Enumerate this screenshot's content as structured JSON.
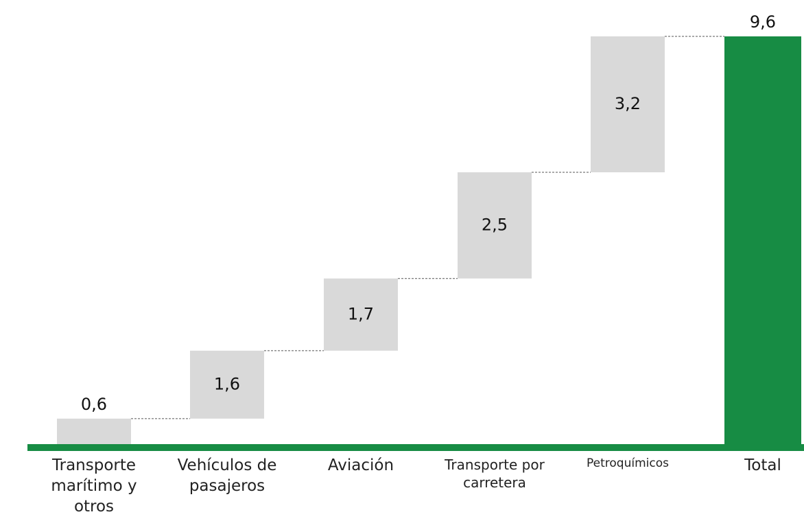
{
  "chart_data": {
    "type": "waterfall",
    "categories": [
      "Transporte marítimo y otros",
      "Vehículos de pasajeros",
      "Aviación",
      "Transporte por carretera",
      "Petroquímicos",
      "Total"
    ],
    "values": [
      0.6,
      1.6,
      1.7,
      2.5,
      3.2,
      9.6
    ],
    "value_labels": [
      "0,6",
      "1,6",
      "1,7",
      "2,5",
      "3,2",
      "9,6"
    ],
    "colors": [
      "#d9d9d9",
      "#d9d9d9",
      "#d9d9d9",
      "#d9d9d9",
      "#d9d9d9",
      "#178c44"
    ]
  }
}
